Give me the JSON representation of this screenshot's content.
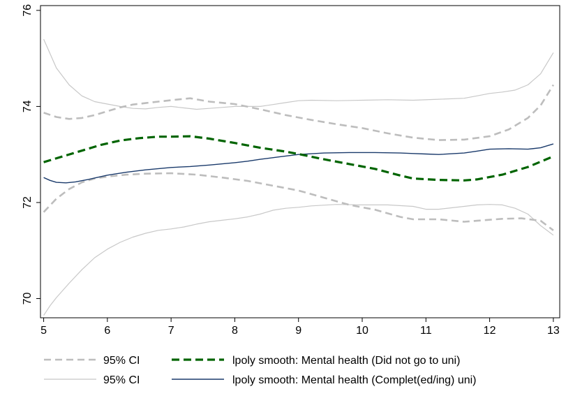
{
  "chart_data": {
    "type": "line",
    "title": "",
    "xlabel": "",
    "ylabel": "",
    "xlim": [
      5,
      13
    ],
    "ylim": [
      69.6,
      76.1
    ],
    "x_ticks": [
      "5",
      "6",
      "7",
      "8",
      "9",
      "10",
      "11",
      "12",
      "13"
    ],
    "y_ticks": [
      "70",
      "72",
      "74",
      "76"
    ],
    "grid": false,
    "legend_position": "bottom",
    "series": [
      {
        "name": "95% CI",
        "group": "did_not_go_ci_upper",
        "color": "#bdbdbd",
        "style": "dashed",
        "x": [
          5.0,
          5.2,
          5.4,
          5.6,
          5.8,
          6.0,
          6.2,
          6.4,
          6.6,
          6.8,
          7.0,
          7.3,
          7.6,
          8.0,
          8.4,
          8.8,
          9.2,
          9.6,
          10.0,
          10.4,
          10.8,
          11.2,
          11.6,
          12.0,
          12.3,
          12.6,
          12.8,
          13.0
        ],
        "y": [
          73.87,
          73.78,
          73.74,
          73.76,
          73.82,
          73.9,
          73.98,
          74.04,
          74.07,
          74.1,
          74.13,
          74.17,
          74.1,
          74.05,
          73.94,
          73.82,
          73.72,
          73.63,
          73.55,
          73.44,
          73.35,
          73.3,
          73.31,
          73.38,
          73.52,
          73.76,
          74.02,
          74.45
        ]
      },
      {
        "name": "95% CI",
        "group": "did_not_go_ci_lower",
        "color": "#bdbdbd",
        "style": "dashed",
        "x": [
          5.0,
          5.2,
          5.4,
          5.6,
          5.8,
          6.0,
          6.3,
          6.6,
          7.0,
          7.4,
          7.8,
          8.2,
          8.6,
          9.0,
          9.4,
          9.8,
          10.2,
          10.6,
          10.8,
          11.2,
          11.6,
          11.8,
          12.2,
          12.5,
          12.8,
          13.0
        ],
        "y": [
          71.8,
          72.08,
          72.28,
          72.42,
          72.5,
          72.54,
          72.58,
          72.6,
          72.61,
          72.58,
          72.52,
          72.45,
          72.35,
          72.25,
          72.1,
          71.95,
          71.85,
          71.7,
          71.65,
          71.65,
          71.6,
          71.62,
          71.66,
          71.67,
          71.62,
          71.42
        ]
      },
      {
        "name": "lpoly smooth: Mental health (Did not go to uni)",
        "group": "did_not_go_smooth",
        "color": "#006400",
        "style": "dashed",
        "x": [
          5.0,
          5.3,
          5.6,
          5.9,
          6.2,
          6.5,
          6.8,
          7.0,
          7.3,
          7.6,
          8.0,
          8.4,
          8.8,
          9.0,
          9.4,
          9.8,
          10.2,
          10.6,
          10.8,
          11.2,
          11.6,
          11.8,
          12.2,
          12.6,
          13.0
        ],
        "y": [
          72.84,
          72.96,
          73.08,
          73.2,
          73.29,
          73.34,
          73.37,
          73.37,
          73.38,
          73.33,
          73.24,
          73.14,
          73.06,
          73.01,
          72.9,
          72.8,
          72.7,
          72.56,
          72.5,
          72.47,
          72.46,
          72.48,
          72.58,
          72.74,
          72.96
        ]
      },
      {
        "name": "95% CI",
        "group": "completed_uni_ci_upper",
        "color": "#c8c8c8",
        "style": "solid",
        "x": [
          5.0,
          5.1,
          5.2,
          5.4,
          5.6,
          5.8,
          6.0,
          6.2,
          6.4,
          6.6,
          6.8,
          7.0,
          7.2,
          7.4,
          7.6,
          7.8,
          8.0,
          8.2,
          8.4,
          8.6,
          8.8,
          9.0,
          9.2,
          9.6,
          10.0,
          10.4,
          10.8,
          11.2,
          11.6,
          11.8,
          12.0,
          12.2,
          12.4,
          12.6,
          12.8,
          13.0
        ],
        "y": [
          75.4,
          75.1,
          74.8,
          74.45,
          74.22,
          74.1,
          74.05,
          74.0,
          73.96,
          73.95,
          73.98,
          74.0,
          73.97,
          73.94,
          73.96,
          73.98,
          74.0,
          74.0,
          74.0,
          74.04,
          74.08,
          74.12,
          74.13,
          74.12,
          74.13,
          74.14,
          74.13,
          74.15,
          74.17,
          74.22,
          74.27,
          74.3,
          74.34,
          74.45,
          74.68,
          75.12
        ]
      },
      {
        "name": "95% CI",
        "group": "completed_uni_ci_lower",
        "color": "#c8c8c8",
        "style": "solid",
        "x": [
          5.0,
          5.1,
          5.2,
          5.4,
          5.6,
          5.8,
          6.0,
          6.2,
          6.4,
          6.6,
          6.8,
          7.0,
          7.2,
          7.4,
          7.6,
          7.8,
          8.0,
          8.2,
          8.4,
          8.6,
          8.8,
          9.0,
          9.2,
          9.6,
          10.0,
          10.4,
          10.8,
          11.0,
          11.2,
          11.6,
          11.8,
          12.0,
          12.2,
          12.4,
          12.6,
          12.8,
          13.0
        ],
        "y": [
          69.65,
          69.85,
          70.02,
          70.32,
          70.6,
          70.85,
          71.03,
          71.17,
          71.28,
          71.36,
          71.42,
          71.45,
          71.49,
          71.55,
          71.6,
          71.63,
          71.66,
          71.7,
          71.76,
          71.84,
          71.88,
          71.9,
          71.93,
          71.96,
          71.95,
          71.95,
          71.92,
          71.86,
          71.86,
          71.92,
          71.95,
          71.96,
          71.95,
          71.88,
          71.76,
          71.52,
          71.32
        ]
      },
      {
        "name": "lpoly smooth: Mental health (Complet(ed/ing) uni)",
        "group": "completed_uni_smooth",
        "color": "#1a3a6b",
        "style": "solid",
        "x": [
          5.0,
          5.1,
          5.2,
          5.35,
          5.5,
          5.7,
          6.0,
          6.3,
          6.6,
          7.0,
          7.3,
          7.6,
          8.0,
          8.2,
          8.4,
          8.7,
          9.0,
          9.4,
          9.8,
          10.2,
          10.6,
          10.8,
          11.0,
          11.2,
          11.6,
          11.8,
          12.0,
          12.3,
          12.6,
          12.8,
          13.0
        ],
        "y": [
          72.52,
          72.46,
          72.42,
          72.41,
          72.43,
          72.48,
          72.57,
          72.63,
          72.68,
          72.73,
          72.75,
          72.78,
          72.83,
          72.86,
          72.9,
          72.95,
          73.0,
          73.03,
          73.04,
          73.04,
          73.03,
          73.02,
          73.01,
          73.0,
          73.03,
          73.07,
          73.11,
          73.12,
          73.11,
          73.14,
          73.22
        ]
      }
    ],
    "legend": [
      {
        "label": "95% CI",
        "color": "#bdbdbd",
        "style": "dashed"
      },
      {
        "label": "lpoly smooth: Mental health (Did not go to uni)",
        "color": "#006400",
        "style": "dashed"
      },
      {
        "label": "95% CI",
        "color": "#c8c8c8",
        "style": "solid"
      },
      {
        "label": "lpoly smooth: Mental health (Complet(ed/ing) uni)",
        "color": "#1a3a6b",
        "style": "solid"
      }
    ]
  }
}
